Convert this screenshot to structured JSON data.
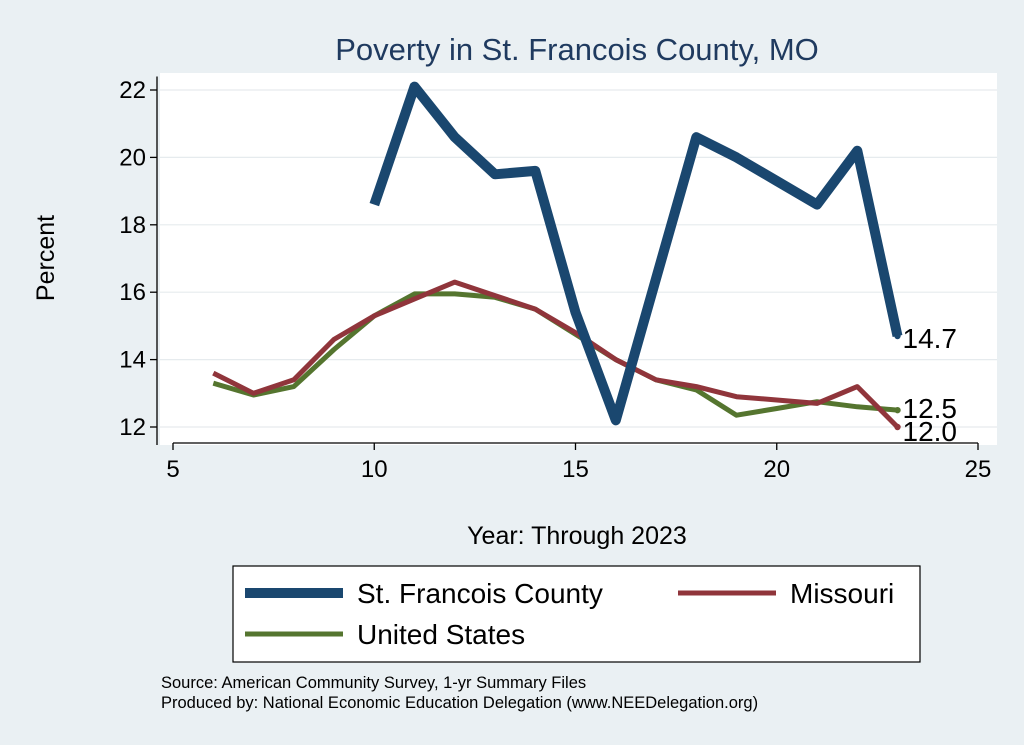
{
  "chart_data": {
    "type": "line",
    "title": "Poverty in St. Francois County, MO",
    "xlabel": "Year: Through 2023",
    "ylabel": "Percent",
    "xlim": [
      5,
      25
    ],
    "ylim": [
      11.6,
      22.5
    ],
    "xticks": [
      5,
      10,
      15,
      20,
      25
    ],
    "yticks": [
      12,
      14,
      16,
      18,
      20,
      22
    ],
    "grid": true,
    "series": [
      {
        "name": "St. Francois County",
        "color": "#1a476f",
        "x": [
          10,
          11,
          12,
          13,
          14,
          15,
          16,
          17,
          18,
          19,
          20,
          21,
          22,
          23
        ],
        "y": [
          18.6,
          22.1,
          20.6,
          19.5,
          19.6,
          15.4,
          12.2,
          16.4,
          20.6,
          20.0,
          19.3,
          18.6,
          20.2,
          14.7
        ],
        "end_label": "14.7"
      },
      {
        "name": "Missouri",
        "color": "#90353b",
        "x": [
          6,
          7,
          8,
          9,
          10,
          11,
          12,
          13,
          14,
          15,
          16,
          17,
          18,
          19,
          20,
          21,
          22,
          23
        ],
        "y": [
          13.6,
          13.0,
          13.4,
          14.6,
          15.3,
          15.8,
          16.3,
          15.9,
          15.5,
          14.8,
          14.0,
          13.4,
          13.2,
          12.9,
          12.8,
          12.7,
          13.2,
          12.0
        ],
        "end_label": "12.0"
      },
      {
        "name": "United States",
        "color": "#55752f",
        "x": [
          6,
          7,
          8,
          9,
          10,
          11,
          12,
          13,
          14,
          15,
          16,
          17,
          18,
          19,
          20,
          21,
          22,
          23
        ],
        "y": [
          13.3,
          12.95,
          13.2,
          14.3,
          15.3,
          15.95,
          15.95,
          15.85,
          15.5,
          14.75,
          14.0,
          13.4,
          13.1,
          12.35,
          12.55,
          12.75,
          12.6,
          12.5
        ],
        "end_label": "12.5"
      }
    ],
    "legend": {
      "placement": "bottom",
      "entries": [
        "St. Francois County",
        "Missouri",
        "United States"
      ]
    }
  },
  "source": {
    "line1": "Source: American Community Survey, 1-yr Summary Files",
    "line2": "Produced by: National Economic Education Delegation (www.NEEDelegation.org)"
  }
}
